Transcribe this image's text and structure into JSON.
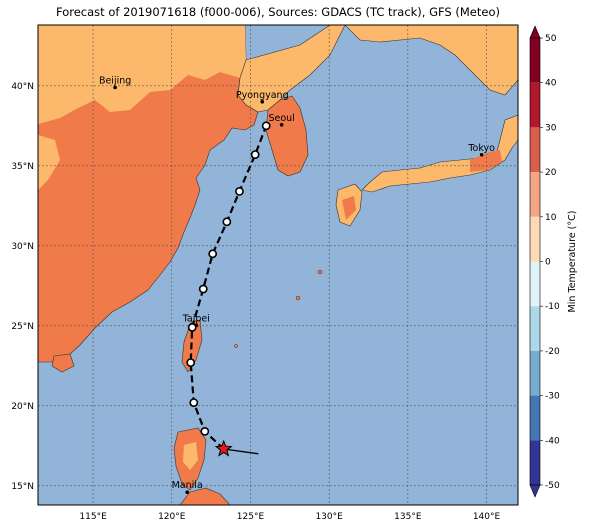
{
  "title": "Forecast of 2019071618 (f000-006), Sources: GDACS (TC track), GFS (Meteo)",
  "map": {
    "lon_range": [
      111.5,
      142
    ],
    "lat_range": [
      13.8,
      43.8
    ],
    "lon_ticks": [
      {
        "v": 115,
        "label": "115°E"
      },
      {
        "v": 120,
        "label": "120°E"
      },
      {
        "v": 125,
        "label": "125°E"
      },
      {
        "v": 130,
        "label": "130°E"
      },
      {
        "v": 135,
        "label": "135°E"
      },
      {
        "v": 140,
        "label": "140°E"
      }
    ],
    "lat_ticks": [
      {
        "v": 15,
        "label": "15°N"
      },
      {
        "v": 20,
        "label": "20°N"
      },
      {
        "v": 25,
        "label": "25°N"
      },
      {
        "v": 30,
        "label": "30°N"
      },
      {
        "v": 35,
        "label": "35°N"
      },
      {
        "v": 40,
        "label": "40°N"
      }
    ],
    "ocean_color": "#91b4d8",
    "cities": [
      {
        "name": "Beijing",
        "lon": 116.4,
        "lat": 39.9
      },
      {
        "name": "Pyongyang",
        "lon": 125.75,
        "lat": 39.0
      },
      {
        "name": "Seoul",
        "lon": 126.98,
        "lat": 37.56
      },
      {
        "name": "Tokyo",
        "lon": 139.69,
        "lat": 35.69
      },
      {
        "name": "Taipei",
        "lon": 121.56,
        "lat": 25.03
      },
      {
        "name": "Manila",
        "lon": 120.98,
        "lat": 14.6
      }
    ],
    "track": [
      {
        "lon": 123.3,
        "lat": 17.3
      },
      {
        "lon": 122.1,
        "lat": 18.4
      },
      {
        "lon": 121.4,
        "lat": 20.2
      },
      {
        "lon": 121.2,
        "lat": 22.7
      },
      {
        "lon": 121.3,
        "lat": 24.9
      },
      {
        "lon": 122.0,
        "lat": 27.3
      },
      {
        "lon": 122.6,
        "lat": 29.5
      },
      {
        "lon": 123.5,
        "lat": 31.5
      },
      {
        "lon": 124.3,
        "lat": 33.4
      },
      {
        "lon": 125.3,
        "lat": 35.7
      },
      {
        "lon": 126.0,
        "lat": 37.5
      }
    ],
    "current_position": {
      "lon": 123.3,
      "lat": 17.3
    },
    "motion_from": {
      "lon": 125.5,
      "lat": 17.0
    }
  },
  "colorbar": {
    "label": "Min Temperature (°C)",
    "ticks": [
      50,
      40,
      30,
      20,
      10,
      0,
      -10,
      -20,
      -30,
      -40,
      -50
    ],
    "colors": [
      "#7f0020",
      "#b2182b",
      "#d6604d",
      "#f4a582",
      "#fdd9b4",
      "#fff8d0",
      "#e0f3f8",
      "#abd9e9",
      "#74add1",
      "#4575b4",
      "#313695"
    ],
    "land_warm": "#f07a49",
    "land_mild": "#fdb96b"
  }
}
